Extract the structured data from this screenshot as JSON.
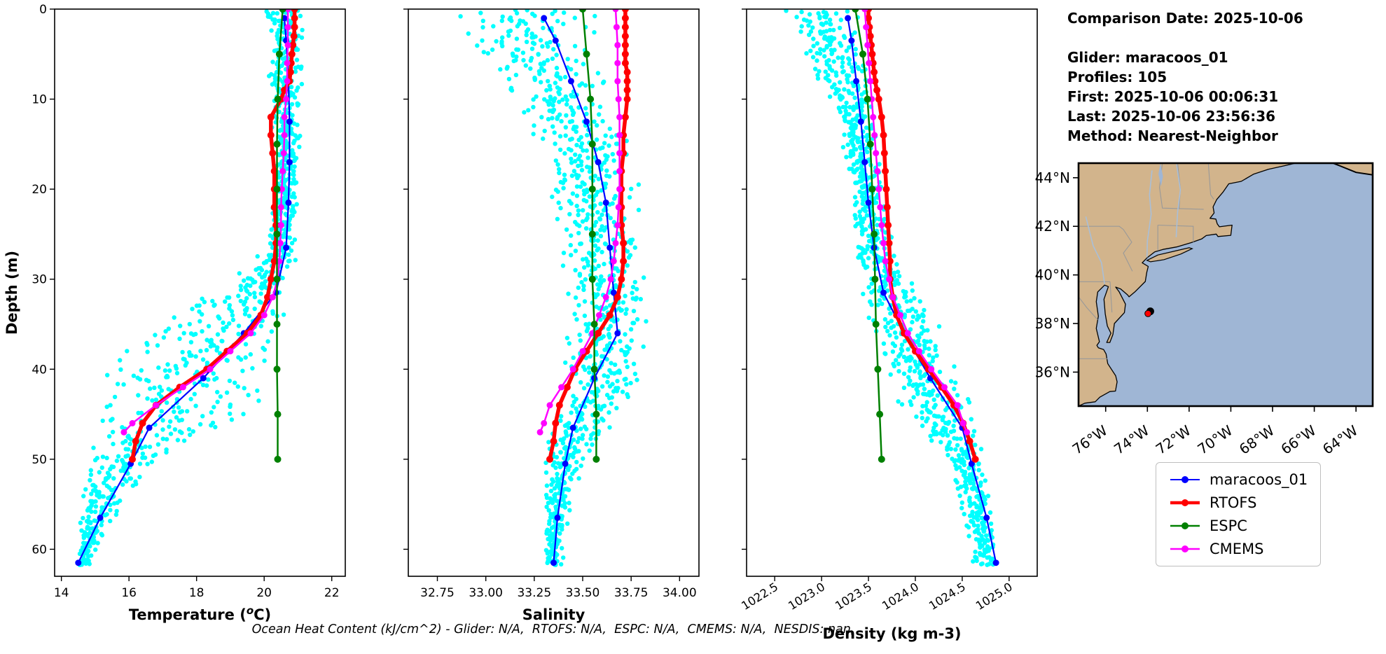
{
  "figure": {
    "background": "#ffffff",
    "footnote": "Ocean Heat Content (kJ/cm^2) - Glider: N/A,  RTOFS: N/A,  ESPC: N/A,  CMEMS: N/A,  NESDIS: nan,"
  },
  "info_panel": {
    "lines": [
      "Comparison Date: 2025-10-06",
      "",
      "Glider: maracoos_01",
      "Profiles: 105",
      "First: 2025-10-06 00:06:31",
      "Last: 2025-10-06 23:56:36",
      "Method: Nearest-Neighbor"
    ]
  },
  "legend": {
    "items": [
      {
        "label": "maracoos_01",
        "color": "#0000FF",
        "line_width": 2
      },
      {
        "label": "RTOFS",
        "color": "#FF0000",
        "line_width": 4.5
      },
      {
        "label": "ESPC",
        "color": "#008000",
        "line_width": 2.5
      },
      {
        "label": "CMEMS",
        "color": "#FF00FF",
        "line_width": 2.5
      }
    ]
  },
  "chart_data": [
    {
      "id": "temperature",
      "type": "line+scatter",
      "xlabel": "Temperature (oC)",
      "xlabel_parts": [
        "Temperature (",
        "o",
        "C)"
      ],
      "ylabel": "Depth (m)",
      "xlim": [
        13.8,
        22.4
      ],
      "xticks": [
        14,
        16,
        18,
        20,
        22
      ],
      "xtick_labels": [
        "14",
        "16",
        "18",
        "20",
        "22"
      ],
      "rotate_xtick_labels": false,
      "ylim": [
        0,
        63
      ],
      "yticks": [
        0,
        10,
        20,
        30,
        40,
        50,
        60
      ],
      "ytick_labels": [
        "0",
        "10",
        "20",
        "30",
        "40",
        "50",
        "60"
      ],
      "show_ytick_labels": true,
      "scatter_name": "glider-raw-profiles",
      "scatter_color": "#00FFFF",
      "scatter_envelope": [
        [
          0,
          19.95,
          21.3
        ],
        [
          4,
          20.05,
          21.25
        ],
        [
          8,
          20.1,
          21.2
        ],
        [
          12,
          20.2,
          21.15
        ],
        [
          16,
          20.25,
          21.1
        ],
        [
          20,
          20.2,
          21.05
        ],
        [
          24,
          20.1,
          21.0
        ],
        [
          28,
          19.7,
          21.0
        ],
        [
          31,
          18.6,
          20.95
        ],
        [
          34,
          16.9,
          20.85
        ],
        [
          37,
          15.6,
          20.7
        ],
        [
          40,
          15.0,
          20.55
        ],
        [
          43,
          14.9,
          20.2
        ],
        [
          46,
          14.8,
          19.3
        ],
        [
          48,
          14.75,
          17.8
        ],
        [
          50,
          14.7,
          16.9
        ],
        [
          53,
          14.6,
          16.2
        ],
        [
          56,
          14.55,
          15.8
        ],
        [
          58,
          14.5,
          15.3
        ],
        [
          61.5,
          14.45,
          14.9
        ]
      ],
      "series": [
        {
          "name": "maracoos_01",
          "color": "#0000FF",
          "line_width": 2.2,
          "marker_radius": 4.5,
          "zorder": 3,
          "depth": [
            1,
            3.5,
            8,
            12.5,
            17,
            21.5,
            26.5,
            31.5,
            36,
            41,
            46.5,
            50.5,
            56.5,
            61.5
          ],
          "value": [
            20.6,
            20.65,
            20.72,
            20.75,
            20.75,
            20.72,
            20.65,
            20.35,
            19.4,
            18.2,
            16.6,
            16.05,
            15.15,
            14.5
          ]
        },
        {
          "name": "RTOFS",
          "color": "#FF0000",
          "line_width": 5.5,
          "marker_radius": 5,
          "zorder": 4,
          "depth": [
            0,
            1,
            2,
            3,
            4,
            5,
            6,
            7,
            8,
            9,
            10,
            12,
            14,
            16,
            18,
            20,
            22,
            24,
            26,
            28,
            30,
            32,
            34,
            36,
            38,
            40,
            42,
            44,
            46,
            48,
            50
          ],
          "value": [
            20.9,
            20.9,
            20.9,
            20.88,
            20.85,
            20.82,
            20.8,
            20.78,
            20.75,
            20.6,
            20.5,
            20.2,
            20.2,
            20.25,
            20.3,
            20.3,
            20.3,
            20.35,
            20.35,
            20.3,
            20.2,
            20.1,
            19.9,
            19.5,
            18.9,
            18.3,
            17.5,
            16.8,
            16.4,
            16.2,
            16.1
          ]
        },
        {
          "name": "CMEMS",
          "color": "#FF00FF",
          "line_width": 2.5,
          "marker_radius": 4.5,
          "zorder": 5,
          "depth": [
            0,
            2,
            4,
            6,
            8,
            10,
            12,
            14,
            16,
            18,
            20,
            22,
            24,
            26,
            28,
            30,
            32,
            34,
            36,
            38,
            40,
            42,
            44,
            46,
            47
          ],
          "value": [
            20.7,
            20.7,
            20.7,
            20.68,
            20.68,
            20.65,
            20.6,
            20.6,
            20.58,
            20.55,
            20.52,
            20.5,
            20.5,
            20.48,
            20.45,
            20.4,
            20.25,
            20.0,
            19.6,
            19.0,
            18.4,
            17.6,
            16.8,
            16.1,
            15.85
          ]
        },
        {
          "name": "ESPC",
          "color": "#008000",
          "line_width": 2.5,
          "marker_radius": 5,
          "zorder": 6,
          "depth": [
            0,
            5,
            10,
            15,
            20,
            25,
            30,
            35,
            40,
            45,
            50
          ],
          "value": [
            20.55,
            20.45,
            20.4,
            20.38,
            20.38,
            20.38,
            20.38,
            20.38,
            20.38,
            20.4,
            20.4
          ]
        }
      ]
    },
    {
      "id": "salinity",
      "type": "line+scatter",
      "xlabel": "Salinity",
      "ylabel": "",
      "xlim": [
        32.6,
        34.1
      ],
      "xticks": [
        32.75,
        33.0,
        33.25,
        33.5,
        33.75,
        34.0
      ],
      "xtick_labels": [
        "32.75",
        "33.00",
        "33.25",
        "33.50",
        "33.75",
        "34.00"
      ],
      "rotate_xtick_labels": false,
      "ylim": [
        0,
        63
      ],
      "yticks": [
        0,
        10,
        20,
        30,
        40,
        50,
        60
      ],
      "ytick_labels": [
        "0",
        "10",
        "20",
        "30",
        "40",
        "50",
        "60"
      ],
      "show_ytick_labels": false,
      "scatter_name": "glider-raw-profiles",
      "scatter_color": "#00FFFF",
      "scatter_envelope": [
        [
          0,
          32.78,
          33.58
        ],
        [
          4,
          32.9,
          33.62
        ],
        [
          8,
          33.05,
          33.68
        ],
        [
          12,
          33.18,
          33.72
        ],
        [
          16,
          33.26,
          33.76
        ],
        [
          20,
          33.3,
          33.8
        ],
        [
          24,
          33.32,
          33.84
        ],
        [
          28,
          33.34,
          33.88
        ],
        [
          32,
          33.38,
          33.88
        ],
        [
          36,
          33.42,
          33.85
        ],
        [
          40,
          33.38,
          33.8
        ],
        [
          44,
          33.36,
          33.75
        ],
        [
          47,
          33.32,
          33.62
        ],
        [
          50,
          33.3,
          33.52
        ],
        [
          54,
          33.3,
          33.45
        ],
        [
          58,
          33.3,
          33.42
        ],
        [
          61.5,
          33.3,
          33.4
        ]
      ],
      "series": [
        {
          "name": "maracoos_01",
          "color": "#0000FF",
          "line_width": 2.2,
          "marker_radius": 4.5,
          "zorder": 3,
          "depth": [
            1,
            3.5,
            8,
            12.5,
            17,
            21.5,
            26.5,
            31.5,
            36,
            41,
            46.5,
            50.5,
            56.5,
            61.5
          ],
          "value": [
            33.3,
            33.36,
            33.44,
            33.52,
            33.58,
            33.62,
            33.64,
            33.66,
            33.68,
            33.56,
            33.45,
            33.41,
            33.37,
            33.35
          ]
        },
        {
          "name": "RTOFS",
          "color": "#FF0000",
          "line_width": 5.5,
          "marker_radius": 5,
          "zorder": 4,
          "depth": [
            0,
            1,
            2,
            3,
            4,
            5,
            6,
            7,
            8,
            9,
            10,
            12,
            14,
            16,
            18,
            20,
            22,
            24,
            26,
            28,
            30,
            32,
            34,
            36,
            38,
            40,
            42,
            44,
            46,
            48,
            50
          ],
          "value": [
            33.72,
            33.72,
            33.72,
            33.72,
            33.72,
            33.72,
            33.72,
            33.73,
            33.73,
            33.73,
            33.73,
            33.72,
            33.71,
            33.71,
            33.7,
            33.7,
            33.7,
            33.7,
            33.71,
            33.71,
            33.7,
            33.68,
            33.64,
            33.58,
            33.52,
            33.46,
            33.42,
            33.38,
            33.36,
            33.35,
            33.33
          ]
        },
        {
          "name": "CMEMS",
          "color": "#FF00FF",
          "line_width": 2.5,
          "marker_radius": 4.5,
          "zorder": 5,
          "depth": [
            0,
            2,
            4,
            6,
            8,
            10,
            12,
            14,
            16,
            18,
            20,
            22,
            24,
            26,
            28,
            30,
            32,
            34,
            36,
            38,
            40,
            42,
            44,
            46,
            47
          ],
          "value": [
            33.67,
            33.675,
            33.68,
            33.68,
            33.68,
            33.685,
            33.69,
            33.69,
            33.69,
            33.69,
            33.69,
            33.685,
            33.68,
            33.67,
            33.66,
            33.645,
            33.62,
            33.585,
            33.55,
            33.5,
            33.45,
            33.39,
            33.33,
            33.3,
            33.28
          ]
        },
        {
          "name": "ESPC",
          "color": "#008000",
          "line_width": 2.5,
          "marker_radius": 5,
          "zorder": 6,
          "depth": [
            0,
            5,
            10,
            15,
            20,
            25,
            30,
            35,
            40,
            45,
            50
          ],
          "value": [
            33.5,
            33.52,
            33.54,
            33.55,
            33.55,
            33.55,
            33.55,
            33.56,
            33.56,
            33.57,
            33.57
          ]
        }
      ]
    },
    {
      "id": "density",
      "type": "line+scatter",
      "xlabel": "Density (kg m-3)",
      "ylabel": "",
      "xlim": [
        1022.2,
        1025.3
      ],
      "xticks": [
        1022.5,
        1023.0,
        1023.5,
        1024.0,
        1024.5,
        1025.0
      ],
      "xtick_labels": [
        "1022.5",
        "1023.0",
        "1023.5",
        "1024.0",
        "1024.5",
        "1025.0"
      ],
      "rotate_xtick_labels": true,
      "ylim": [
        0,
        63
      ],
      "yticks": [
        0,
        10,
        20,
        30,
        40,
        50,
        60
      ],
      "ytick_labels": [
        "0",
        "10",
        "20",
        "30",
        "40",
        "50",
        "60"
      ],
      "show_ytick_labels": false,
      "scatter_name": "glider-raw-profiles",
      "scatter_color": "#00FFFF",
      "scatter_envelope": [
        [
          0,
          1022.55,
          1023.45
        ],
        [
          4,
          1022.75,
          1023.5
        ],
        [
          8,
          1022.95,
          1023.55
        ],
        [
          12,
          1023.1,
          1023.6
        ],
        [
          16,
          1023.2,
          1023.63
        ],
        [
          20,
          1023.28,
          1023.66
        ],
        [
          24,
          1023.32,
          1023.72
        ],
        [
          28,
          1023.35,
          1023.85
        ],
        [
          32,
          1023.4,
          1024.1
        ],
        [
          36,
          1023.45,
          1024.35
        ],
        [
          40,
          1023.55,
          1024.55
        ],
        [
          44,
          1023.75,
          1024.65
        ],
        [
          47,
          1024.0,
          1024.7
        ],
        [
          50,
          1024.3,
          1024.75
        ],
        [
          54,
          1024.45,
          1024.82
        ],
        [
          58,
          1024.55,
          1024.87
        ],
        [
          61.5,
          1024.6,
          1024.9
        ]
      ],
      "series": [
        {
          "name": "maracoos_01",
          "color": "#0000FF",
          "line_width": 2.2,
          "marker_radius": 4.5,
          "zorder": 3,
          "depth": [
            1,
            3.5,
            8,
            12.5,
            17,
            21.5,
            26.5,
            31.5,
            36,
            41,
            46.5,
            50.5,
            56.5,
            61.5
          ],
          "value": [
            1023.28,
            1023.32,
            1023.37,
            1023.42,
            1023.46,
            1023.5,
            1023.56,
            1023.66,
            1023.88,
            1024.16,
            1024.5,
            1024.6,
            1024.76,
            1024.86
          ]
        },
        {
          "name": "RTOFS",
          "color": "#FF0000",
          "line_width": 5.5,
          "marker_radius": 5,
          "zorder": 4,
          "depth": [
            0,
            1,
            2,
            3,
            4,
            5,
            6,
            7,
            8,
            9,
            10,
            12,
            14,
            16,
            18,
            20,
            22,
            24,
            26,
            28,
            30,
            32,
            34,
            36,
            38,
            40,
            42,
            44,
            46,
            48,
            50
          ],
          "value": [
            1023.5,
            1023.5,
            1023.51,
            1023.52,
            1023.53,
            1023.54,
            1023.55,
            1023.56,
            1023.57,
            1023.59,
            1023.61,
            1023.64,
            1023.66,
            1023.67,
            1023.68,
            1023.69,
            1023.7,
            1023.71,
            1023.72,
            1023.73,
            1023.73,
            1023.76,
            1023.8,
            1023.88,
            1024.0,
            1024.14,
            1024.28,
            1024.41,
            1024.51,
            1024.58,
            1024.64
          ]
        },
        {
          "name": "CMEMS",
          "color": "#FF00FF",
          "line_width": 2.5,
          "marker_radius": 4.5,
          "zorder": 5,
          "depth": [
            0,
            2,
            4,
            6,
            8,
            10,
            12,
            14,
            16,
            18,
            20,
            22,
            24,
            26,
            28,
            30,
            32,
            34,
            36,
            38,
            40,
            42,
            44,
            46,
            47
          ],
          "value": [
            1023.46,
            1023.475,
            1023.49,
            1023.505,
            1023.52,
            1023.535,
            1023.55,
            1023.565,
            1023.58,
            1023.595,
            1023.61,
            1023.625,
            1023.64,
            1023.66,
            1023.68,
            1023.72,
            1023.76,
            1023.84,
            1023.92,
            1024.04,
            1024.17,
            1024.31,
            1024.45,
            1024.51,
            1024.55
          ]
        },
        {
          "name": "ESPC",
          "color": "#008000",
          "line_width": 2.5,
          "marker_radius": 5,
          "zorder": 6,
          "depth": [
            0,
            5,
            10,
            15,
            20,
            25,
            30,
            35,
            40,
            45,
            50
          ],
          "value": [
            1023.36,
            1023.44,
            1023.49,
            1023.52,
            1023.54,
            1023.56,
            1023.57,
            1023.58,
            1023.6,
            1023.62,
            1023.64
          ]
        }
      ]
    }
  ],
  "map": {
    "extent": {
      "lon": [
        -77.3,
        -63.2
      ],
      "lat": [
        34.6,
        44.6
      ]
    },
    "lat_tick_values": [
      36,
      38,
      40,
      42,
      44
    ],
    "lat_tick_labels": [
      "36°N",
      "38°N",
      "40°N",
      "42°N",
      "44°N"
    ],
    "lon_tick_values": [
      -76,
      -74,
      -72,
      -70,
      -68,
      -66,
      -64
    ],
    "lon_tick_labels": [
      "76°W",
      "74°W",
      "72°W",
      "70°W",
      "68°W",
      "66°W",
      "64°W"
    ],
    "land_color": "#D2B48C",
    "ocean_color": "#9FB6D5",
    "border_color": "#000000",
    "glider_marker": {
      "lon": -73.93,
      "lat": 38.45,
      "fill": "#FF0000",
      "halo": "#000000"
    }
  }
}
